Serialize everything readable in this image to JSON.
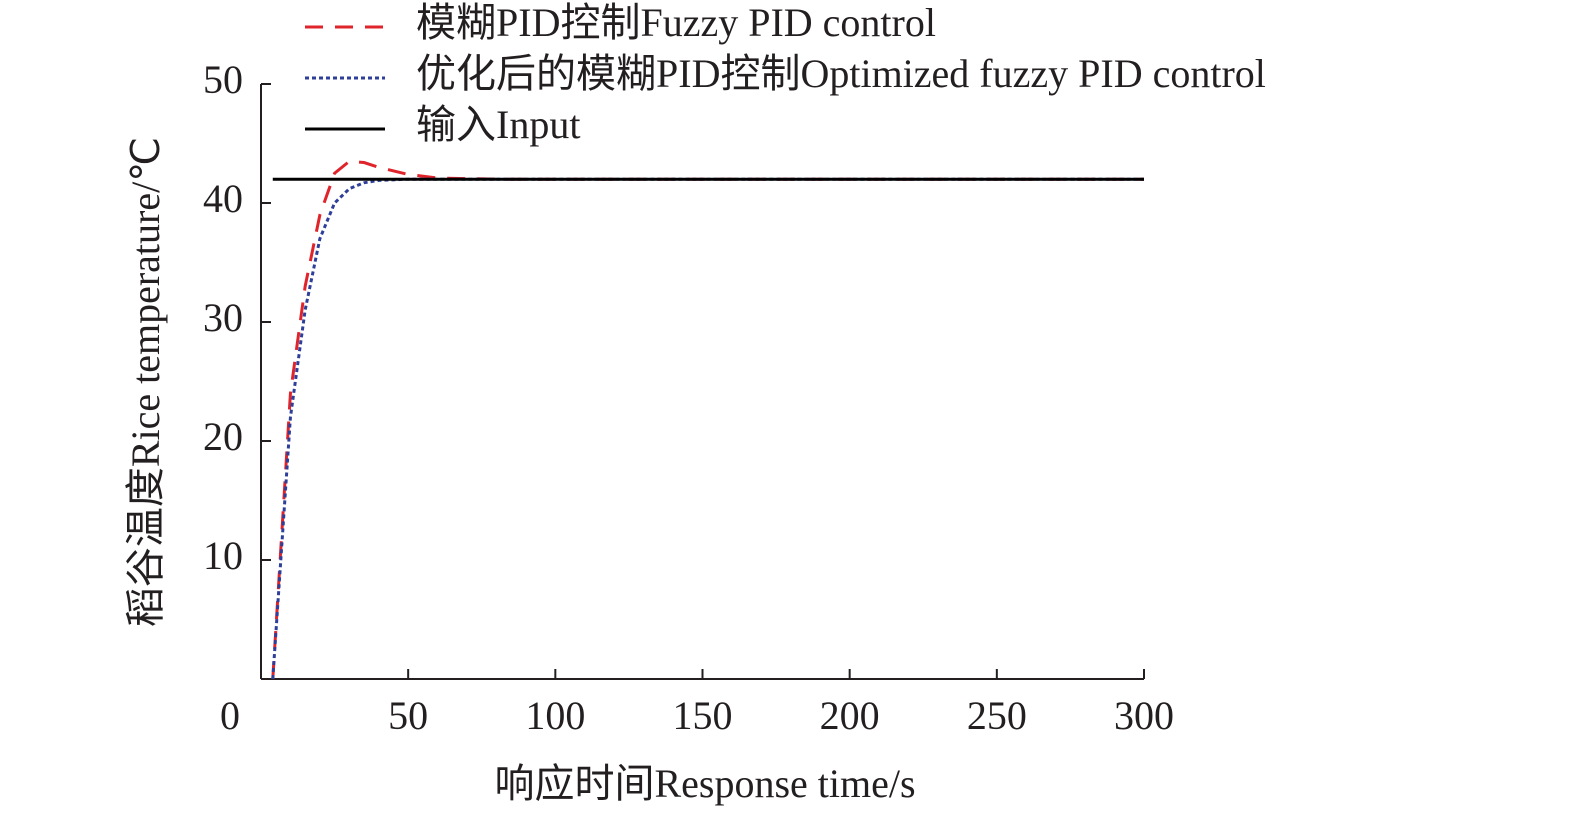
{
  "chart_data": {
    "type": "line",
    "xlabel": "响应时间Response time/s",
    "ylabel": "稻谷温度Rice temperature/℃",
    "x": [
      4,
      10,
      15,
      20,
      25,
      30,
      35,
      40,
      50,
      60,
      80,
      100,
      150,
      200,
      250,
      300
    ],
    "series": [
      {
        "name": "模糊PID控制Fuzzy PID control",
        "color": "#e0242b",
        "dash": "18,12",
        "values": [
          0,
          24,
          33,
          39,
          42.5,
          43.5,
          43.4,
          43,
          42.4,
          42.1,
          42,
          42,
          42,
          42,
          42,
          42
        ]
      },
      {
        "name": "优化后的模糊PID控制Optimized fuzzy PID control",
        "color": "#2e3f9a",
        "dash": "4,3",
        "values": [
          0,
          22,
          31,
          37,
          40,
          41.2,
          41.7,
          41.9,
          42,
          42,
          42,
          42,
          42,
          42,
          42,
          42
        ]
      },
      {
        "name": "输入Input",
        "color": "#000000",
        "dash": "none",
        "values": [
          42,
          42,
          42,
          42,
          42,
          42,
          42,
          42,
          42,
          42,
          42,
          42,
          42,
          42,
          42,
          42
        ]
      }
    ],
    "xlim": [
      0,
      300
    ],
    "xticks": [
      0,
      50,
      100,
      150,
      200,
      250,
      300
    ],
    "ylim": [
      0,
      50
    ],
    "yticks": [
      10,
      20,
      30,
      40,
      50
    ],
    "grid": false,
    "legend": "top"
  }
}
